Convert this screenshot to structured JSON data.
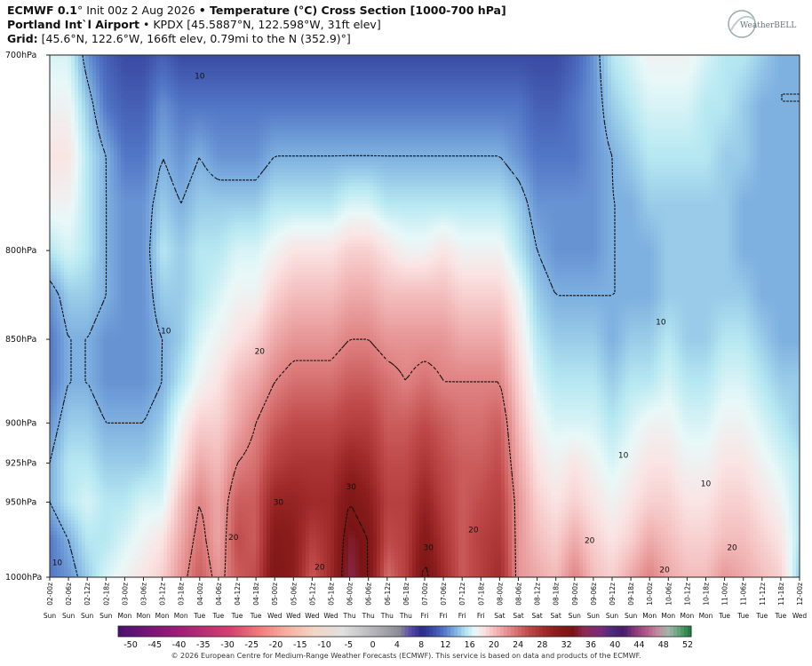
{
  "header": {
    "line1_model": "ECMWF 0.1",
    "line1_deg": "°",
    "line1_init": " Init 00z 2 Aug 2026 ",
    "line1_bullet": "•",
    "line1_title": " Temperature (°C) Cross Section [1000-700 hPa]",
    "line2_station": "Portland Int`l Airport",
    "line2_rest": " • KPDX [45.5887°N, 122.598°W, 31ft elev]",
    "line3_label": "Grid:",
    "line3_rest": " [45.6°N, 122.6°W, 166ft elev, 0.79mi to the N (352.9)°]"
  },
  "logo_text": "WeatherBELL",
  "copyright": "© 2026 European Centre for Medium-Range Weather Forecasts (ECMWF). This service is based on data and products of the ECMWF.",
  "chart_data": {
    "type": "heatmap",
    "title": "Temperature (°C) Cross Section [1000-700 hPa]",
    "y_labels": [
      {
        "p": 700,
        "label": "700hPa"
      },
      {
        "p": 800,
        "label": "800hPa"
      },
      {
        "p": 850,
        "label": "850hPa"
      },
      {
        "p": 900,
        "label": "900hPa"
      },
      {
        "p": 925,
        "label": "925hPa"
      },
      {
        "p": 950,
        "label": "950hPa"
      },
      {
        "p": 1000,
        "label": "1000hPa"
      }
    ],
    "ylim": [
      1000,
      700
    ],
    "x_ticks": [
      "02-00z",
      "02-06z",
      "02-12z",
      "02-18z",
      "03-00z",
      "03-06z",
      "03-12z",
      "03-18z",
      "04-00z",
      "04-06z",
      "04-12z",
      "04-18z",
      "05-00z",
      "05-06z",
      "05-12z",
      "05-18z",
      "06-00z",
      "06-06z",
      "06-12z",
      "06-18z",
      "07-00z",
      "07-06z",
      "07-12z",
      "07-18z",
      "08-00z",
      "08-06z",
      "08-12z",
      "08-18z",
      "09-00z",
      "09-06z",
      "09-12z",
      "09-18z",
      "10-00z",
      "10-06z",
      "10-12z",
      "10-18z",
      "11-00z",
      "11-06z",
      "11-12z",
      "11-18z",
      "12-00z"
    ],
    "x_days": [
      "Sun",
      "Sun",
      "Sun",
      "Sun",
      "Mon",
      "Mon",
      "Mon",
      "Mon",
      "Tue",
      "Tue",
      "Tue",
      "Tue",
      "Wed",
      "Wed",
      "Wed",
      "Wed",
      "Thu",
      "Thu",
      "Thu",
      "Thu",
      "Fri",
      "Fri",
      "Fri",
      "Fri",
      "Sat",
      "Sat",
      "Sat",
      "Sat",
      "Sun",
      "Sun",
      "Sun",
      "Sun",
      "Mon",
      "Mon",
      "Mon",
      "Mon",
      "Tue",
      "Tue",
      "Tue",
      "Tue",
      "Wed"
    ],
    "levels": [
      1000,
      975,
      950,
      925,
      900,
      875,
      850,
      825,
      800,
      775,
      750,
      725,
      700
    ],
    "temps": [
      [
        8,
        8,
        10,
        10,
        9,
        8,
        8,
        9,
        12,
        14,
        15,
        14,
        13
      ],
      [
        9,
        10,
        12,
        12,
        11,
        10,
        10,
        11,
        13,
        14,
        15,
        14,
        13
      ],
      [
        11,
        12,
        13,
        12,
        11,
        10,
        10,
        11,
        12,
        12,
        12,
        11,
        9
      ],
      [
        13,
        12,
        12,
        11,
        10,
        9,
        9,
        10,
        10,
        10,
        10,
        8,
        7
      ],
      [
        14,
        13,
        12,
        11,
        10,
        9,
        9,
        9,
        9,
        9,
        8,
        7,
        6
      ],
      [
        15,
        14,
        13,
        11,
        10,
        9,
        9,
        9,
        9,
        9,
        8,
        7,
        6
      ],
      [
        16,
        15,
        13,
        12,
        11,
        10,
        10,
        11,
        12,
        11,
        10,
        9,
        7
      ],
      [
        19,
        18,
        17,
        15,
        14,
        12,
        11,
        11,
        11,
        10,
        9,
        8,
        6
      ],
      [
        22,
        21,
        20,
        18,
        16,
        14,
        13,
        12,
        12,
        11,
        10,
        8,
        6
      ],
      [
        19,
        18,
        18,
        17,
        16,
        15,
        14,
        13,
        12,
        11,
        9,
        8,
        6
      ],
      [
        22,
        23,
        22,
        20,
        18,
        17,
        15,
        14,
        13,
        11,
        9,
        8,
        6
      ],
      [
        23,
        22,
        22,
        21,
        20,
        18,
        16,
        14,
        13,
        11,
        9,
        8,
        6
      ],
      [
        30,
        29,
        27,
        24,
        22,
        20,
        18,
        16,
        14,
        12,
        10,
        8,
        6
      ],
      [
        28,
        28,
        27,
        25,
        23,
        21,
        19,
        17,
        15,
        12,
        10,
        8,
        6
      ],
      [
        22,
        24,
        26,
        25,
        23,
        21,
        19,
        17,
        15,
        12,
        10,
        8,
        6
      ],
      [
        26,
        26,
        26,
        25,
        23,
        21,
        19,
        17,
        15,
        12,
        10,
        8,
        6
      ],
      [
        33,
        32,
        30,
        27,
        24,
        22,
        20,
        18,
        16,
        13,
        10,
        8,
        6
      ],
      [
        30,
        30,
        28,
        26,
        24,
        22,
        20,
        18,
        16,
        13,
        10,
        8,
        6
      ],
      [
        21,
        23,
        24,
        23,
        22,
        21,
        19,
        17,
        15,
        12,
        10,
        8,
        6
      ],
      [
        24,
        24,
        24,
        23,
        22,
        20,
        19,
        17,
        14,
        12,
        10,
        8,
        6
      ],
      [
        31,
        29,
        27,
        25,
        23,
        21,
        19,
        17,
        14,
        12,
        10,
        8,
        6
      ],
      [
        26,
        25,
        24,
        23,
        22,
        20,
        19,
        17,
        15,
        12,
        10,
        8,
        6
      ],
      [
        22,
        22,
        22,
        22,
        21,
        20,
        18,
        16,
        14,
        12,
        10,
        8,
        6
      ],
      [
        24,
        24,
        23,
        22,
        21,
        20,
        18,
        16,
        14,
        12,
        10,
        8,
        6
      ],
      [
        26,
        25,
        24,
        23,
        22,
        20,
        18,
        16,
        14,
        12,
        10,
        8,
        6
      ],
      [
        19,
        19,
        19,
        18,
        17,
        16,
        15,
        14,
        12,
        11,
        9,
        8,
        6
      ],
      [
        18,
        17,
        16,
        15,
        14,
        13,
        12,
        11,
        10,
        9,
        8,
        7,
        6
      ],
      [
        17,
        16,
        15,
        14,
        13,
        12,
        11,
        10,
        9,
        9,
        8,
        7,
        6
      ],
      [
        20,
        18,
        16,
        15,
        13,
        12,
        11,
        10,
        9,
        9,
        8,
        8,
        7
      ],
      [
        17,
        16,
        15,
        14,
        13,
        12,
        11,
        10,
        9,
        9,
        9,
        9,
        9
      ],
      [
        16,
        15,
        14,
        13,
        12,
        11,
        10,
        10,
        10,
        10,
        10,
        11,
        12
      ],
      [
        18,
        16,
        15,
        14,
        13,
        12,
        11,
        10,
        10,
        10,
        11,
        12,
        13
      ],
      [
        20,
        18,
        16,
        15,
        14,
        12,
        11,
        10,
        10,
        11,
        12,
        13,
        14
      ],
      [
        18,
        17,
        16,
        15,
        14,
        13,
        12,
        11,
        11,
        11,
        12,
        13,
        14
      ],
      [
        17,
        16,
        15,
        14,
        13,
        12,
        11,
        11,
        11,
        11,
        12,
        13,
        14
      ],
      [
        17,
        16,
        15,
        14,
        13,
        12,
        11,
        11,
        11,
        11,
        12,
        12,
        13
      ],
      [
        19,
        17,
        16,
        15,
        14,
        13,
        12,
        11,
        11,
        11,
        11,
        12,
        12
      ],
      [
        18,
        17,
        16,
        15,
        14,
        13,
        12,
        11,
        10,
        10,
        11,
        11,
        12
      ],
      [
        17,
        16,
        15,
        14,
        13,
        12,
        11,
        10,
        10,
        10,
        10,
        10,
        11
      ],
      [
        16,
        15,
        14,
        13,
        12,
        11,
        10,
        10,
        10,
        10,
        10,
        10,
        10
      ],
      [
        11,
        12,
        12,
        12,
        11,
        11,
        10,
        10,
        10,
        10,
        10,
        10,
        10
      ]
    ],
    "contour_labels": [
      {
        "text": "10",
        "t": 2,
        "p": 710
      },
      {
        "text": "10",
        "t": 1.55,
        "p": 845
      },
      {
        "text": "20",
        "t": 2.8,
        "p": 857
      },
      {
        "text": "10",
        "t": 0.1,
        "p": 990
      },
      {
        "text": "20",
        "t": 2.45,
        "p": 973
      },
      {
        "text": "30",
        "t": 3.05,
        "p": 950
      },
      {
        "text": "20",
        "t": 3.6,
        "p": 993
      },
      {
        "text": "30",
        "t": 4.02,
        "p": 940
      },
      {
        "text": "30",
        "t": 5.05,
        "p": 980
      },
      {
        "text": "20",
        "t": 5.65,
        "p": 968
      },
      {
        "text": "20",
        "t": 7.2,
        "p": 975
      },
      {
        "text": "20",
        "t": 8.2,
        "p": 995
      },
      {
        "text": "20",
        "t": 9.1,
        "p": 980
      },
      {
        "text": "10",
        "t": 8.15,
        "p": 840
      },
      {
        "text": "10",
        "t": 7.65,
        "p": 920
      },
      {
        "text": "10",
        "t": 8.75,
        "p": 938
      }
    ],
    "colorbar": {
      "stops": [
        {
          "t": -50,
          "c": "#4a1070"
        },
        {
          "t": -40,
          "c": "#9a1a7a"
        },
        {
          "t": -30,
          "c": "#d84070"
        },
        {
          "t": -25,
          "c": "#f07a7a"
        },
        {
          "t": -20,
          "c": "#f7b0a0"
        },
        {
          "t": -15,
          "c": "#f2d6c6"
        },
        {
          "t": -10,
          "c": "#e0e0e0"
        },
        {
          "t": -5,
          "c": "#b8b8bc"
        },
        {
          "t": 0,
          "c": "#8c8c98"
        },
        {
          "t": 2,
          "c": "#5a4ca8"
        },
        {
          "t": 4,
          "c": "#2a2c88"
        },
        {
          "t": 6,
          "c": "#3a4aa4"
        },
        {
          "t": 8,
          "c": "#5276c6"
        },
        {
          "t": 10,
          "c": "#7eb0e0"
        },
        {
          "t": 12,
          "c": "#b6e8f2"
        },
        {
          "t": 13.5,
          "c": "#e8f8f8"
        },
        {
          "t": 15,
          "c": "#fbe4e4"
        },
        {
          "t": 17,
          "c": "#f4bcbc"
        },
        {
          "t": 20,
          "c": "#e08282"
        },
        {
          "t": 23,
          "c": "#c04a4a"
        },
        {
          "t": 26,
          "c": "#a02a2a"
        },
        {
          "t": 28,
          "c": "#8a1c1c"
        },
        {
          "t": 31,
          "c": "#7a1414"
        },
        {
          "t": 33,
          "c": "#8a2c54"
        },
        {
          "t": 36,
          "c": "#7a2a7c"
        },
        {
          "t": 38,
          "c": "#4a2a7a"
        },
        {
          "t": 40,
          "c": "#4a1a6a"
        },
        {
          "t": 42,
          "c": "#8a3a7a"
        },
        {
          "t": 44,
          "c": "#b05a8a"
        },
        {
          "t": 46,
          "c": "#c08aa0"
        },
        {
          "t": 48,
          "c": "#a0b8a8"
        },
        {
          "t": 50,
          "c": "#5aa070"
        },
        {
          "t": 52,
          "c": "#1a7a3a"
        }
      ],
      "labels": [
        "-50",
        "-45",
        "-40",
        "-35",
        "-30",
        "-25",
        "-20",
        "-15",
        "-10",
        "-5",
        "0",
        "4",
        "8",
        "12",
        "16",
        "20",
        "24",
        "28",
        "32",
        "36",
        "40",
        "44",
        "48",
        "52"
      ]
    }
  }
}
